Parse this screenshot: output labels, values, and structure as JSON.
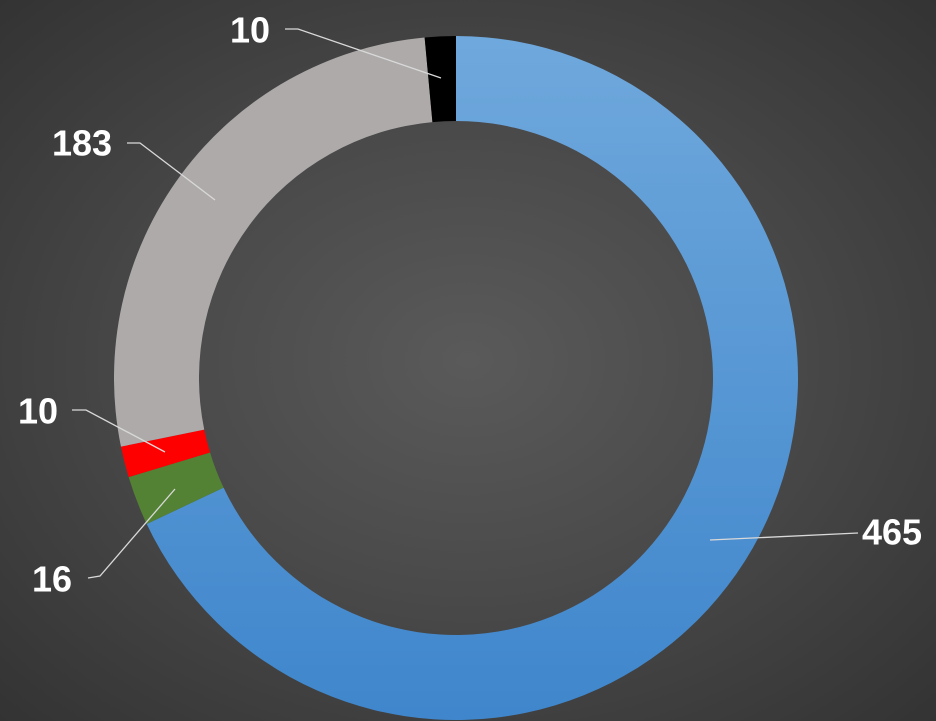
{
  "chart_data": {
    "type": "pie",
    "variant": "doughnut",
    "slices": [
      {
        "value": 465,
        "label": "465",
        "color": "#5b9bd5"
      },
      {
        "value": 16,
        "label": "16",
        "color": "#548235"
      },
      {
        "value": 10,
        "label": "10",
        "color": "#ff0000"
      },
      {
        "value": 183,
        "label": "183",
        "color": "#aeaaaa"
      },
      {
        "value": 10,
        "label": "10",
        "color": "#000000"
      }
    ],
    "start_angle": "12 o'clock",
    "direction": "clockwise",
    "legend": "none",
    "data_labels": "outside, with leader lines"
  }
}
